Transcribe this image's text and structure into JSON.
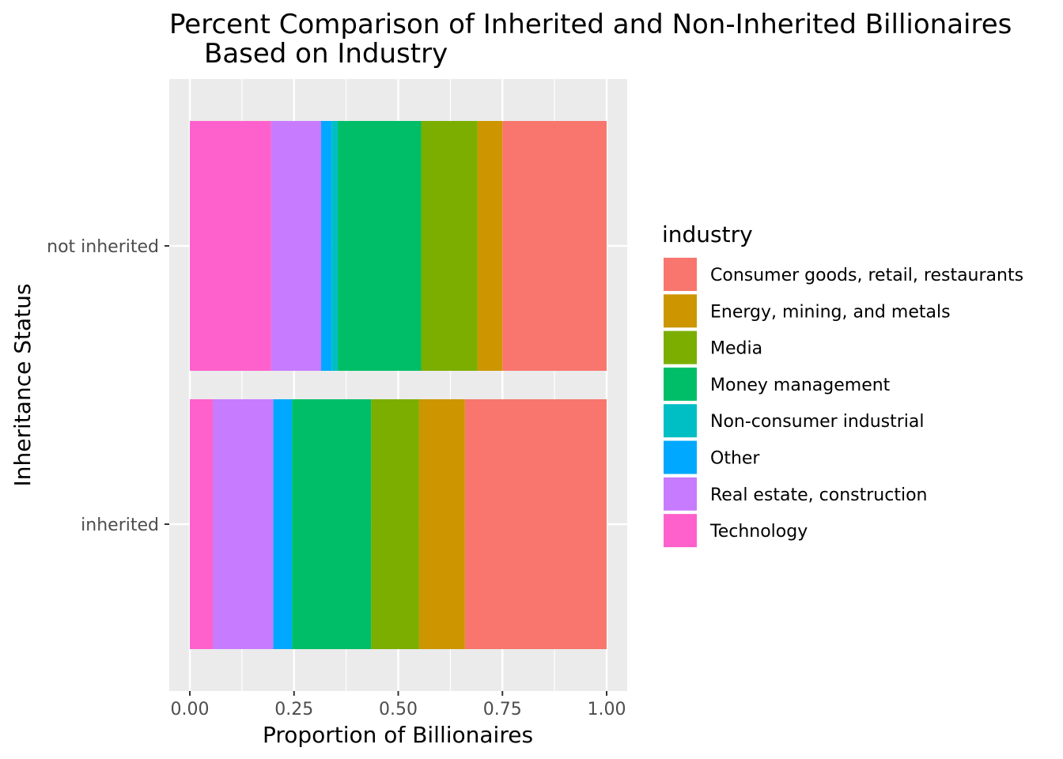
{
  "chart_data": {
    "type": "bar",
    "orientation": "horizontal",
    "stacked": true,
    "title_line1": "Percent Comparison of Inherited and Non-Inherited Billionaires",
    "title_line2": "Based on Industry",
    "xlabel": "Proportion of Billionaires",
    "ylabel": "Inheritance Status",
    "xlim": [
      0,
      1
    ],
    "x_ticks": [
      "0.00",
      "0.25",
      "0.50",
      "0.75",
      "1.00"
    ],
    "categories": [
      "inherited",
      "not inherited"
    ],
    "legend": {
      "title": "industry",
      "placement": "right",
      "entries": [
        "Consumer goods, retail, restaurants",
        "Energy, mining, and metals",
        "Media",
        "Money management",
        "Non-consumer industrial",
        "Other",
        "Real estate, construction",
        "Technology"
      ]
    },
    "grid": true,
    "series": [
      {
        "name": "Consumer goods, retail, restaurants",
        "color": "#F8766D",
        "values": [
          0.34,
          0.25
        ]
      },
      {
        "name": "Energy, mining, and metals",
        "color": "#CD9600",
        "values": [
          0.11,
          0.06
        ]
      },
      {
        "name": "Media",
        "color": "#7CAE00",
        "values": [
          0.115,
          0.135
        ]
      },
      {
        "name": "Money management",
        "color": "#00BE67",
        "values": [
          0.19,
          0.2
        ]
      },
      {
        "name": "Non-consumer industrial",
        "color": "#00BFC4",
        "values": [
          0.0,
          0.015
        ]
      },
      {
        "name": "Other",
        "color": "#00A9FF",
        "values": [
          0.045,
          0.025
        ]
      },
      {
        "name": "Real estate, construction",
        "color": "#C77CFF",
        "values": [
          0.145,
          0.12
        ]
      },
      {
        "name": "Technology",
        "color": "#FF61CC",
        "values": [
          0.055,
          0.195
        ]
      }
    ]
  }
}
